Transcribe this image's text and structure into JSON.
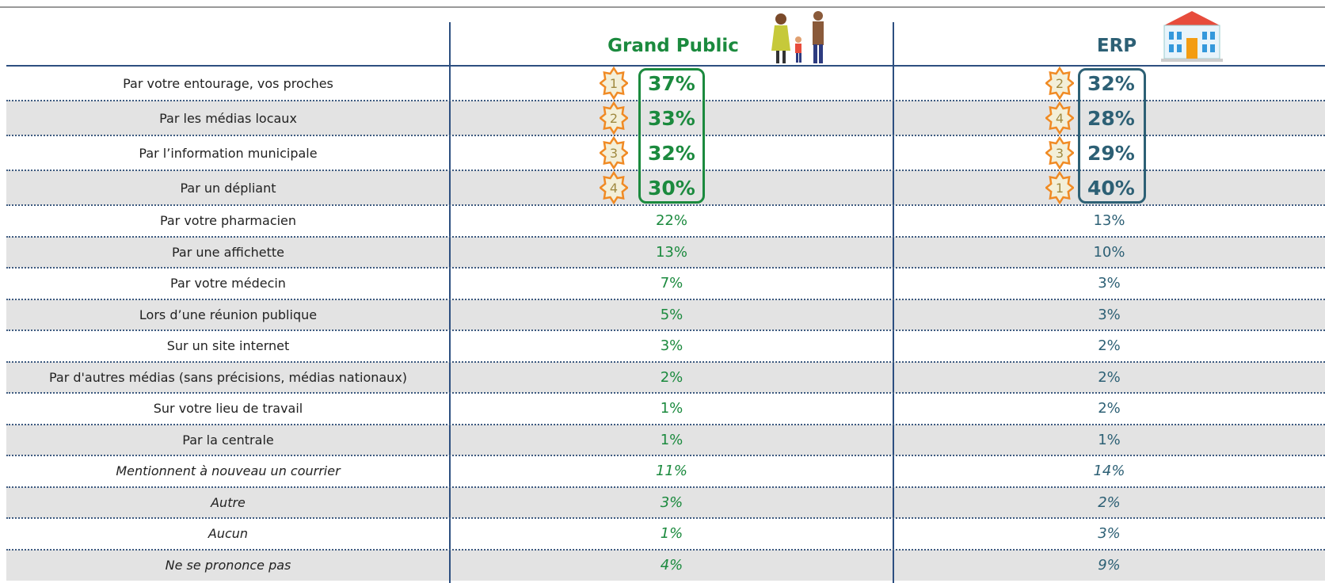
{
  "header": {
    "columns": [
      "Grand Public",
      "ERP"
    ]
  },
  "table": {
    "rows": [
      {
        "label": "Par votre entourage, vos proches",
        "grand_public": "37%",
        "grand_public_rank": "1",
        "erp": "32%",
        "erp_rank": "2"
      },
      {
        "label": "Par les médias locaux",
        "grand_public": "33%",
        "grand_public_rank": "2",
        "erp": "28%",
        "erp_rank": "4"
      },
      {
        "label": "Par l’information municipale",
        "grand_public": "32%",
        "grand_public_rank": "3",
        "erp": "29%",
        "erp_rank": "3"
      },
      {
        "label": "Par un dépliant",
        "grand_public": "30%",
        "grand_public_rank": "4",
        "erp": "40%",
        "erp_rank": "1"
      },
      {
        "label": "Par votre pharmacien",
        "grand_public": "22%",
        "erp": "13%"
      },
      {
        "label": "Par une affichette",
        "grand_public": "13%",
        "erp": "10%"
      },
      {
        "label": "Par votre médecin",
        "grand_public": "7%",
        "erp": "3%"
      },
      {
        "label": "Lors d’une réunion publique",
        "grand_public": "5%",
        "erp": "3%"
      },
      {
        "label": "Sur un site internet",
        "grand_public": "3%",
        "erp": "2%"
      },
      {
        "label": "Par d'autres médias (sans précisions, médias nationaux)",
        "grand_public": "2%",
        "erp": "2%"
      },
      {
        "label": "Sur votre lieu de travail",
        "grand_public": "1%",
        "erp": "2%"
      },
      {
        "label": "Par la centrale",
        "grand_public": "1%",
        "erp": "1%"
      }
    ],
    "additional_rows": [
      {
        "label": "Mentionnent à nouveau un courrier",
        "grand_public": "11%",
        "erp": "14%"
      },
      {
        "label": "Autre",
        "grand_public": "3%",
        "erp": "2%"
      },
      {
        "label": "Aucun",
        "grand_public": "1%",
        "erp": "3%"
      },
      {
        "label": "Ne se prononce pas",
        "grand_public": "4%",
        "erp": "9%"
      }
    ]
  }
}
